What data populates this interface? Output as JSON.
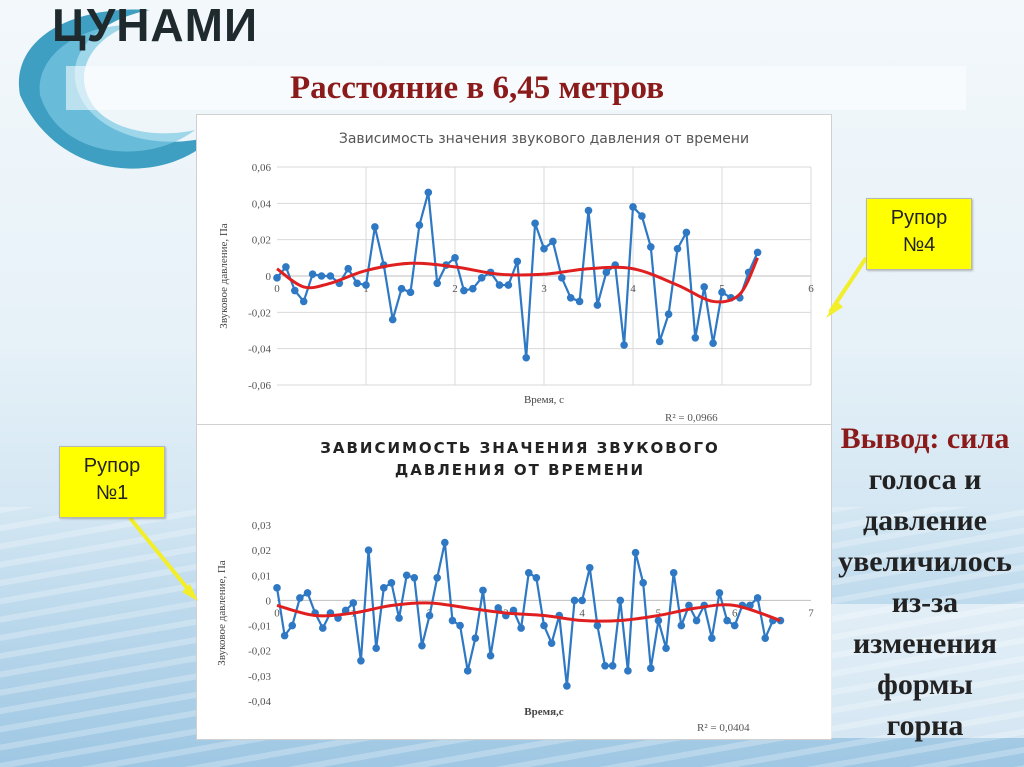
{
  "slide": {
    "brand": "ЦУНАМИ",
    "title": "Расстояние в 6,45 метров"
  },
  "callouts": {
    "top": "Рупор\n№4",
    "bottom": "Рупор\n№1"
  },
  "conclusion": {
    "lead": "Вывод: сила",
    "lines": [
      "голоса и",
      "давление",
      "увеличилось",
      "из-за",
      "изменения",
      "формы",
      "горна"
    ]
  },
  "colors": {
    "series": "#2e78c4",
    "trend": "#e02020",
    "title_red": "#8b1a1a",
    "callout": "#ffff00"
  },
  "chart_data": [
    {
      "type": "line",
      "title": "Зависимость значения звукового давления от времени",
      "xlabel": "Время, с",
      "ylabel": "Звуковое давление, Па",
      "ylim": [
        -0.06,
        0.06
      ],
      "xlim": [
        0,
        6
      ],
      "yticks": [
        "0,06",
        "0,04",
        "0,02",
        "0",
        "-0,02",
        "-0,04",
        "-0,06"
      ],
      "xticks": [
        "0",
        "1",
        "2",
        "3",
        "4",
        "5",
        "6"
      ],
      "r2_label": "R² = 0,0966",
      "grid": true,
      "series": [
        {
          "x": [
            0,
            0.1,
            0.2,
            0.3,
            0.4,
            0.5,
            0.6,
            0.7,
            0.8,
            0.9,
            1.0,
            1.1,
            1.2,
            1.3,
            1.4,
            1.5,
            1.6,
            1.7,
            1.8,
            1.9,
            2.0,
            2.1,
            2.2,
            2.3,
            2.4,
            2.5,
            2.6,
            2.7,
            2.8,
            2.9,
            3.0,
            3.1,
            3.2,
            3.3,
            3.4,
            3.5,
            3.6,
            3.7,
            3.8,
            3.9,
            4.0,
            4.1,
            4.2,
            4.3,
            4.4,
            4.5,
            4.6,
            4.7,
            4.8,
            4.9,
            5.0,
            5.1,
            5.2,
            5.3,
            5.4
          ],
          "values": [
            -0.001,
            0.005,
            -0.008,
            -0.014,
            0.001,
            0,
            0,
            -0.004,
            0.004,
            -0.004,
            -0.005,
            0.027,
            0.006,
            -0.024,
            -0.007,
            -0.009,
            0.028,
            0.046,
            -0.004,
            0.006,
            0.01,
            -0.008,
            -0.007,
            -0.001,
            0.002,
            -0.005,
            -0.005,
            0.008,
            -0.045,
            0.029,
            0.015,
            0.019,
            -0.001,
            -0.012,
            -0.014,
            0.036,
            -0.016,
            0.002,
            0.006,
            -0.038,
            0.038,
            0.033,
            0.016,
            -0.036,
            -0.021,
            0.015,
            0.024,
            -0.034,
            -0.006,
            -0.037,
            -0.009,
            -0.012,
            -0.012,
            0.002,
            0.013
          ]
        },
        {
          "type": "trend",
          "x": [
            0,
            0.3,
            0.6,
            1.0,
            1.5,
            2.0,
            2.5,
            3.0,
            3.5,
            4.0,
            4.5,
            4.9,
            5.2,
            5.4
          ],
          "values": [
            0.004,
            -0.006,
            -0.004,
            0.003,
            0.007,
            0.005,
            0.001,
            0.001,
            0.004,
            0.004,
            -0.005,
            -0.014,
            -0.01,
            0.01
          ]
        }
      ]
    },
    {
      "type": "line",
      "title": "ЗАВИСИМОСТЬ ЗНАЧЕНИЯ ЗВУКОВОГО ДАВЛЕНИЯ ОТ ВРЕМЕНИ",
      "xlabel": "Время,с",
      "ylabel": "Звуковое давление, Па",
      "ylim": [
        -0.04,
        0.03
      ],
      "xlim": [
        0,
        7
      ],
      "yticks": [
        "0,03",
        "0,02",
        "0,01",
        "0",
        "-0,01",
        "-0,02",
        "-0,03",
        "-0,04"
      ],
      "xticks": [
        "0",
        "1",
        "2",
        "3",
        "4",
        "5",
        "6",
        "7"
      ],
      "r2_label": "R² = 0,0404",
      "grid": false,
      "series": [
        {
          "x": [
            0,
            0.1,
            0.2,
            0.3,
            0.4,
            0.5,
            0.6,
            0.7,
            0.8,
            0.9,
            1.0,
            1.1,
            1.2,
            1.3,
            1.4,
            1.5,
            1.6,
            1.7,
            1.8,
            1.9,
            2.0,
            2.1,
            2.2,
            2.3,
            2.4,
            2.5,
            2.6,
            2.7,
            2.8,
            2.9,
            3.0,
            3.1,
            3.2,
            3.3,
            3.4,
            3.5,
            3.6,
            3.7,
            3.8,
            3.9,
            4.0,
            4.1,
            4.2,
            4.3,
            4.4,
            4.5,
            4.6,
            4.7,
            4.8,
            4.9,
            5.0,
            5.1,
            5.2,
            5.3,
            5.4,
            5.5,
            5.6,
            5.7,
            5.8,
            5.9,
            6.0,
            6.1,
            6.2,
            6.3,
            6.4,
            6.5,
            6.6
          ],
          "values": [
            0.005,
            -0.014,
            -0.01,
            0.001,
            0.003,
            -0.005,
            -0.011,
            -0.005,
            -0.007,
            -0.004,
            -0.001,
            -0.024,
            0.02,
            -0.019,
            0.005,
            0.007,
            -0.007,
            0.01,
            0.009,
            -0.018,
            -0.006,
            0.009,
            0.023,
            -0.008,
            -0.01,
            -0.028,
            -0.015,
            0.004,
            -0.022,
            -0.003,
            -0.006,
            -0.004,
            -0.011,
            0.011,
            0.009,
            -0.01,
            -0.017,
            -0.006,
            -0.034,
            0,
            0,
            0.013,
            -0.01,
            -0.026,
            -0.026,
            0,
            -0.028,
            0.019,
            0.007,
            -0.027,
            -0.008,
            -0.019,
            0.011,
            -0.01,
            -0.002,
            -0.008,
            -0.002,
            -0.015,
            0.003,
            -0.008,
            -0.01,
            -0.002,
            -0.002,
            0.001,
            -0.015,
            -0.008,
            -0.008
          ]
        },
        {
          "type": "trend",
          "x": [
            0,
            0.5,
            1.0,
            1.5,
            2.0,
            2.5,
            3.0,
            3.5,
            4.0,
            4.5,
            5.0,
            5.5,
            6.0,
            6.6
          ],
          "values": [
            -0.002,
            -0.006,
            -0.005,
            -0.002,
            -0.001,
            -0.003,
            -0.005,
            -0.006,
            -0.008,
            -0.008,
            -0.006,
            -0.003,
            -0.002,
            -0.008
          ]
        }
      ]
    }
  ]
}
